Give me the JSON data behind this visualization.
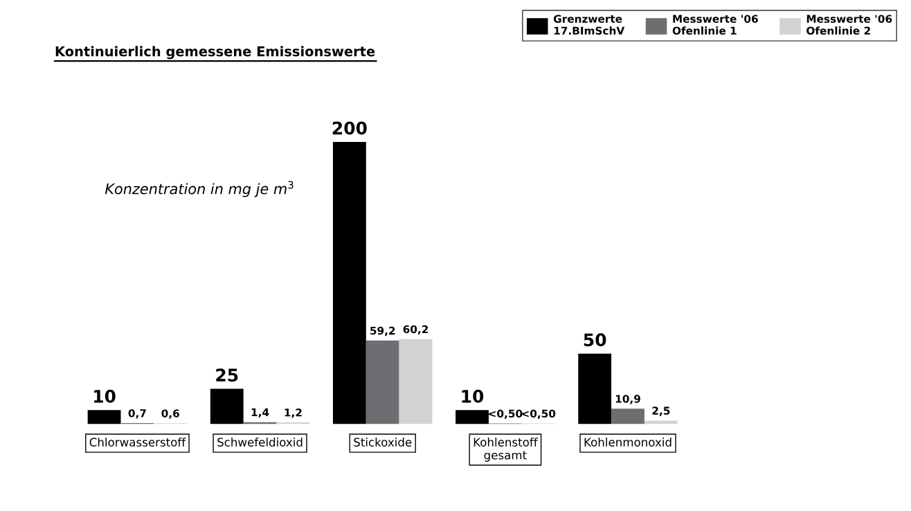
{
  "chart_data": {
    "type": "bar",
    "title": "Kontinuierlich gemessene Emissionswerte",
    "annotations": [
      "Konzentration in mg je m$^{3}$"
    ],
    "categories": [
      "Chlorwasserstoff",
      "Schwefeldioxid",
      "Stickoxide",
      "Kohlenstoff\ngesamt",
      "Kohlenmonoxid"
    ],
    "series": [
      {
        "name": "Grenzwerte\n17.BImSchV",
        "color": "#000000",
        "values": [
          10,
          25,
          200,
          10,
          50
        ],
        "value_labels": [
          "10",
          "25",
          "200",
          "10",
          "50"
        ]
      },
      {
        "name": "Messwerte '06\nOfenlinie 1",
        "color": "#6d6e71",
        "values": [
          0.7,
          1.4,
          59.2,
          0.5,
          10.9
        ],
        "value_labels": [
          "0,7",
          "1,4",
          "59,2",
          "<0,50",
          "10,9"
        ]
      },
      {
        "name": "Messwerte '06\nOfenlinie 2",
        "color": "#d1d2d4",
        "values": [
          0.6,
          1.2,
          60.2,
          0.5,
          2.5
        ],
        "value_labels": [
          "0,6",
          "1,2",
          "60,2",
          "<0,50",
          "2,5"
        ]
      }
    ],
    "legend": "top right",
    "grid": false
  }
}
